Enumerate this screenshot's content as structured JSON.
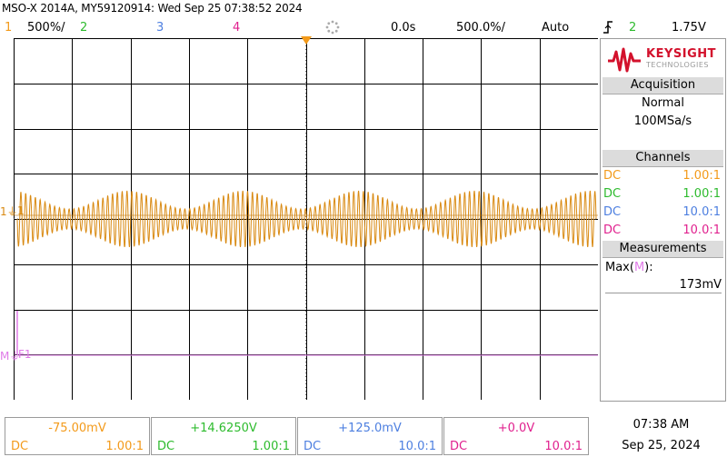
{
  "window": {
    "title": "MSO-X 2014A, MY59120914: Wed Sep 25 07:38:52 2024"
  },
  "topbar": {
    "ch1_num": "1",
    "ch1_scale": "500%/",
    "ch2_num": "2",
    "ch3_num": "3",
    "ch4_num": "4",
    "time_delay": "0.0s",
    "time_scale": "500.0%/",
    "trigger_mode": "Auto",
    "trigger_slope_icon": "trigger-rising-edge-icon",
    "trigger_source": "2",
    "trigger_level": "1.75V"
  },
  "markers": {
    "ch1_marker": "1",
    "math_marker": "M",
    "f1_marker": "F1",
    "t_marker": "T"
  },
  "panel": {
    "brand_name": "KEYSIGHT",
    "brand_sub": "TECHNOLOGIES",
    "acquisition_header": "Acquisition",
    "acq_mode": "Normal",
    "acq_rate": "100MSa/s",
    "channels_header": "Channels",
    "channels": [
      {
        "coupling": "DC",
        "probe": "1.00:1",
        "color": "#f39a1a"
      },
      {
        "coupling": "DC",
        "probe": "1.00:1",
        "color": "#2dbb2d"
      },
      {
        "coupling": "DC",
        "probe": "10.0:1",
        "color": "#4d7fe0"
      },
      {
        "coupling": "DC",
        "probe": "10.0:1",
        "color": "#e0208e"
      }
    ],
    "measurements_header": "Measurements",
    "meas_label": "Max(",
    "meas_source": "M",
    "meas_label_end": "):",
    "meas_value": "173mV"
  },
  "bottom": {
    "channels": [
      {
        "offset": "-75.00mV",
        "coupling": "DC",
        "probe": "1.00:1",
        "color": "#f39a1a"
      },
      {
        "offset": "+14.6250V",
        "coupling": "DC",
        "probe": "1.00:1",
        "color": "#2dbb2d"
      },
      {
        "offset": "+125.0mV",
        "coupling": "DC",
        "probe": "10.0:1",
        "color": "#4d7fe0"
      },
      {
        "offset": "+0.0V",
        "coupling": "DC",
        "probe": "10.0:1",
        "color": "#e0208e"
      }
    ],
    "time": "07:38 AM",
    "date": "Sep 25, 2024"
  },
  "colors": {
    "ch1": "#d98a12",
    "ch2": "#2dbb2d",
    "ch3": "#4d7fe0",
    "ch4": "#e0208e",
    "math": "#e07ae8",
    "keysight_red": "#d3112c"
  },
  "waveform": {
    "carrier_cycles_on_screen": 120,
    "envelope_cycles_on_screen": 5
  }
}
